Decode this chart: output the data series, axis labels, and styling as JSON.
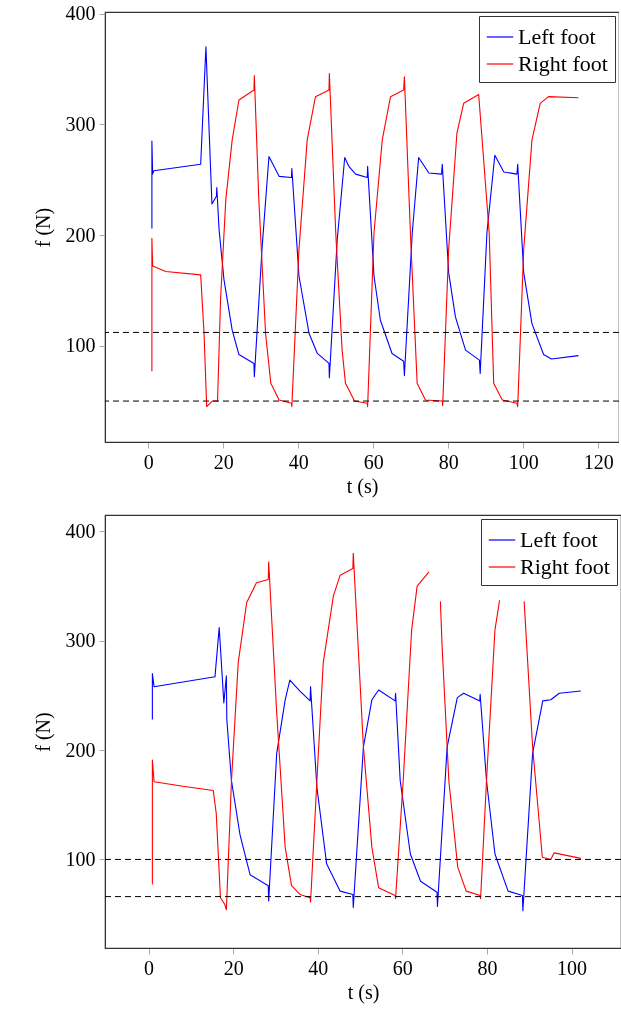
{
  "chart_data": [
    {
      "type": "line",
      "xlabel": "t (s)",
      "ylabel": "f (N)",
      "xlim": [
        -11.5,
        125.5
      ],
      "ylim": [
        13,
        401.5
      ],
      "xticks": [
        0,
        20,
        40,
        60,
        80,
        100,
        120
      ],
      "yticks": [
        100,
        200,
        300,
        400
      ],
      "legend": "top right",
      "ref_lines": [
        {
          "axis": "y",
          "value": 112,
          "color": "#000000",
          "line_style": "dashed"
        },
        {
          "axis": "y",
          "value": 50,
          "color": "#000000",
          "line_style": "dashed"
        }
      ],
      "series": [
        {
          "name": "Left foot",
          "color": "#0000ff",
          "x": [
            1,
            1,
            1.2,
            1.5,
            14,
            15.4,
            17,
            18.2,
            18.3,
            18.9,
            20.2,
            22.4,
            24.2,
            28.2,
            28.3,
            30.4,
            32.2,
            34.9,
            38.2,
            38.3,
            40.2,
            42.9,
            45.1,
            48.2,
            48.3,
            50.4,
            52.4,
            53.5,
            55.3,
            58.4,
            58.5,
            60.2,
            61.9,
            65,
            68.1,
            68.3,
            70.4,
            72.1,
            74.8,
            78.2,
            78.4,
            80.1,
            81.9,
            84.6,
            88.3,
            88.5,
            90.3,
            92.4,
            94.8,
            98.3,
            98.5,
            100.1,
            102.3,
            105.4,
            107.5,
            114.7
          ],
          "values": [
            206,
            285,
            255,
            258,
            264,
            370,
            228,
            235,
            243,
            205,
            160,
            114,
            92,
            84,
            72,
            190,
            271,
            253,
            252,
            260,
            163,
            111,
            93,
            84,
            71,
            196,
            270,
            262,
            255,
            252,
            262,
            163,
            123,
            93,
            86,
            73,
            202,
            270,
            256,
            255,
            264,
            166,
            126,
            96,
            87,
            75,
            202,
            272,
            257,
            255,
            264,
            166,
            120,
            92,
            88,
            91
          ]
        },
        {
          "name": "Right foot",
          "color": "#ff0000",
          "x": [
            1,
            1,
            1.2,
            4.7,
            14,
            14.9,
            15.6,
            17.1,
            18.5,
            19.3,
            20.7,
            22.4,
            24.2,
            28.2,
            28.3,
            29.5,
            31.3,
            32.7,
            34.9,
            38.2,
            38.3,
            40.2,
            42.4,
            44.6,
            48.2,
            48.3,
            50,
            51.7,
            52.6,
            55,
            58.4,
            58.5,
            60.2,
            62.4,
            64.6,
            68.1,
            68.3,
            69.9,
            71.7,
            73.9,
            78.4,
            78.5,
            80.1,
            82.3,
            84.1,
            88.1,
            90.9,
            92.1,
            94.4,
            98.3,
            98.5,
            100.1,
            102.3,
            104.5,
            106.7,
            114.7
          ],
          "values": [
            77,
            197,
            172,
            167,
            164,
            111,
            45,
            50,
            50,
            142,
            232,
            286,
            322,
            331,
            344,
            232,
            111,
            66,
            51,
            48,
            45,
            187,
            286,
            325,
            331,
            346,
            202,
            96,
            66,
            50,
            48,
            45,
            202,
            286,
            325,
            331,
            343,
            202,
            66,
            51,
            50,
            46,
            187,
            292,
            319,
            327,
            202,
            66,
            51,
            48,
            45,
            187,
            286,
            319,
            325,
            324
          ]
        }
      ]
    },
    {
      "type": "line",
      "xlabel": "t (s)",
      "ylabel": "f (N)",
      "xlim": [
        -10.3,
        111.7
      ],
      "ylim": [
        19,
        415
      ],
      "xticks": [
        0,
        20,
        40,
        60,
        80,
        100
      ],
      "yticks": [
        100,
        200,
        300,
        400
      ],
      "legend": "top right",
      "ref_lines": [
        {
          "axis": "y",
          "value": 100,
          "color": "#000000",
          "line_style": "dashed"
        },
        {
          "axis": "y",
          "value": 66,
          "color": "#000000",
          "line_style": "dashed"
        }
      ],
      "series": [
        {
          "name": "Left foot",
          "color": "#0000ff",
          "x": [
            0.9,
            0.9,
            1.3,
            15.7,
            16.7,
            17.8,
            18.4,
            18.5,
            19.6,
            21.6,
            24,
            28.3,
            28.4,
            30.3,
            32.3,
            33.4,
            35.8,
            38.2,
            38.3,
            39.8,
            42.1,
            45.3,
            48.3,
            48.4,
            50.8,
            52.8,
            54.4,
            58.3,
            58.4,
            59.5,
            61.9,
            64.3,
            68.2,
            68.3,
            70.6,
            73,
            74.5,
            78.3,
            78.4,
            79.9,
            81.9,
            85,
            88.4,
            88.5,
            90.8,
            93.2,
            95.1,
            97.1,
            102.2
          ],
          "values": [
            228,
            270,
            258,
            267,
            312,
            243,
            268,
            228,
            172,
            123,
            86,
            76,
            62,
            197,
            246,
            264,
            254,
            245,
            258,
            166,
            96,
            71,
            68,
            56,
            203,
            246,
            255,
            245,
            252,
            172,
            105,
            80,
            70,
            57,
            203,
            248,
            252,
            245,
            251,
            172,
            105,
            71,
            67,
            53,
            197,
            245,
            246,
            252,
            254
          ]
        },
        {
          "name": "Right foot",
          "color": "#ff0000",
          "x": [
            0.9,
            0.9,
            1.3,
            8.1,
            15.3,
            16,
            17,
            18,
            18.4,
            19.6,
            21.2,
            23.2,
            25.5,
            28.3,
            28.4,
            30.3,
            32.3,
            33.8,
            35.8,
            38.2,
            38.3,
            39.8,
            41.3,
            43.7,
            45.3,
            48.3,
            48.4,
            50.8,
            52.8,
            54.4,
            58.3,
            58.4,
            60.2,
            62.2,
            63.5,
            66.3,
            67.8,
            69,
            69.4,
            71,
            73.1,
            75.1,
            78.4,
            78.5,
            79.9,
            81.9,
            83,
            86,
            88.8,
            90.8,
            93.1,
            95.1,
            95.9,
            102.2
          ],
          "values": [
            77,
            191,
            171,
            167,
            163,
            142,
            65,
            59,
            54,
            172,
            280,
            335,
            353,
            356,
            372,
            234,
            111,
            76,
            68,
            65,
            61,
            172,
            280,
            341,
            360,
            366,
            380,
            203,
            111,
            74,
            67,
            64,
            172,
            310,
            350,
            363,
            null,
            336,
            295,
            172,
            93,
            71,
            67,
            64,
            172,
            310,
            337,
            null,
            336,
            203,
            102,
            100,
            106,
            101
          ]
        }
      ]
    }
  ]
}
